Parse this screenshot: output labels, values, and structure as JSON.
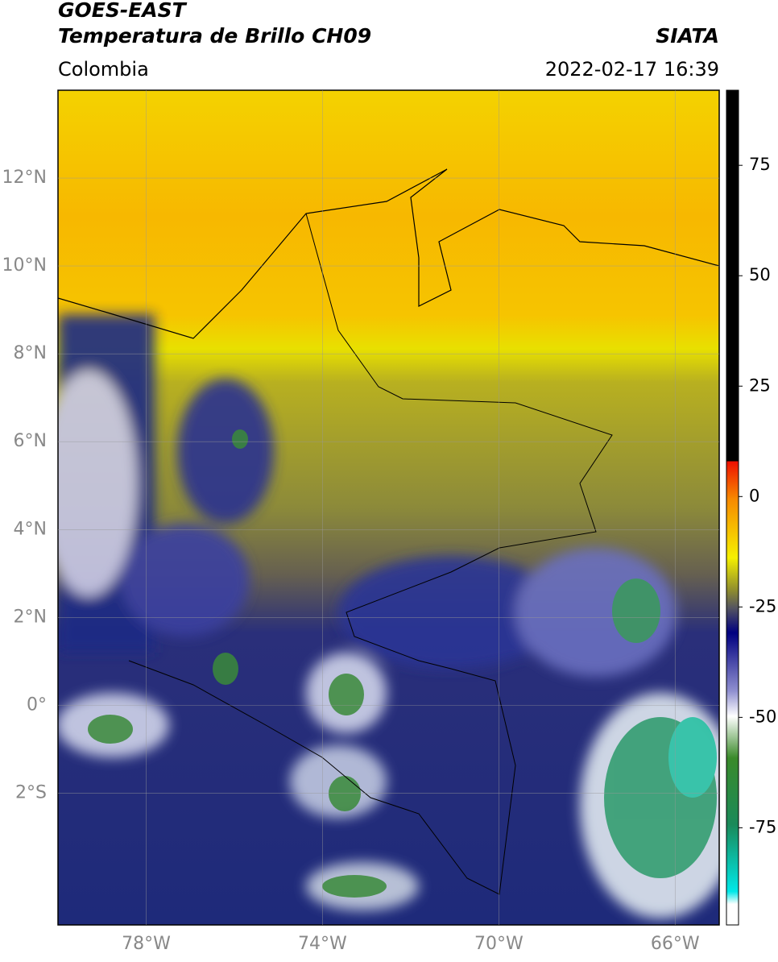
{
  "header": {
    "title": "GOES-EAST",
    "subtitle": "Temperatura de Brillo CH09",
    "source": "SIATA",
    "region": "Colombia",
    "datetime": "2022-02-17 16:39"
  },
  "map": {
    "xlim": [
      -80,
      -65
    ],
    "ylim": [
      -5,
      14
    ],
    "xticks": [
      {
        "value": -78,
        "label": "78°W"
      },
      {
        "value": -74,
        "label": "74°W"
      },
      {
        "value": -70,
        "label": "70°W"
      },
      {
        "value": -66,
        "label": "66°W"
      }
    ],
    "yticks": [
      {
        "value": -2,
        "label": "2°S"
      },
      {
        "value": 0,
        "label": "0°"
      },
      {
        "value": 2,
        "label": "2°N"
      },
      {
        "value": 4,
        "label": "4°N"
      },
      {
        "value": 6,
        "label": "6°N"
      },
      {
        "value": 8,
        "label": "8°N"
      },
      {
        "value": 10,
        "label": "10°N"
      },
      {
        "value": 12,
        "label": "12°N"
      }
    ],
    "grid": true
  },
  "colorbar": {
    "lim": [
      -97,
      92
    ],
    "ticks": [
      -75,
      -50,
      -25,
      0,
      25,
      50,
      75
    ]
  }
}
